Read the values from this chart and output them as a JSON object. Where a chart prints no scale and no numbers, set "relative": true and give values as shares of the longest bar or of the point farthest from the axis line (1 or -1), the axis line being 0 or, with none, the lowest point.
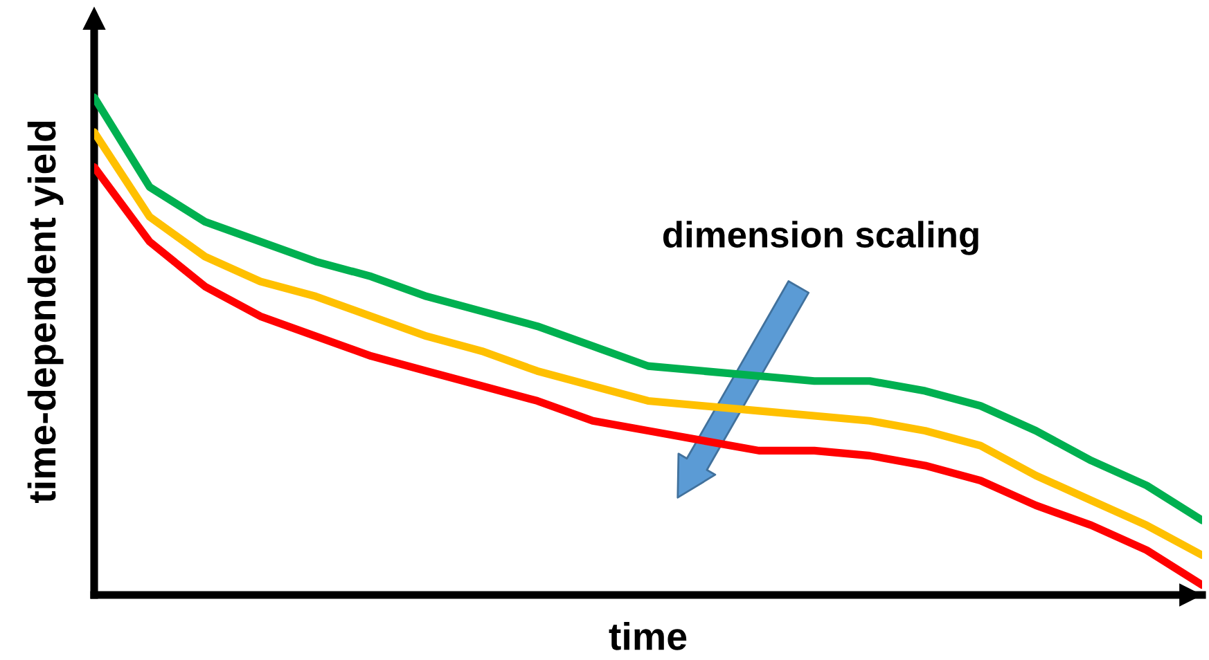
{
  "chart_data": {
    "type": "line",
    "relative": true,
    "xlabel": "time",
    "ylabel": "time-dependent yield",
    "annotations": [
      "dimension scaling"
    ],
    "categories": [
      null,
      null,
      null,
      null,
      null,
      null,
      null,
      null,
      null,
      null,
      null,
      null,
      null,
      null,
      null,
      null,
      null,
      null,
      null,
      null,
      null
    ],
    "series": [
      {
        "color": "#00b050",
        "values": [
          1.0,
          0.82,
          0.75,
          0.71,
          0.67,
          0.64,
          0.6,
          0.57,
          0.54,
          0.5,
          0.46,
          0.45,
          0.44,
          0.43,
          0.43,
          0.41,
          0.38,
          0.33,
          0.27,
          0.22,
          0.15
        ]
      },
      {
        "color": "#ffc000",
        "values": [
          0.93,
          0.76,
          0.68,
          0.63,
          0.6,
          0.56,
          0.52,
          0.49,
          0.45,
          0.42,
          0.39,
          0.38,
          0.37,
          0.36,
          0.35,
          0.33,
          0.3,
          0.24,
          0.19,
          0.14,
          0.08
        ]
      },
      {
        "color": "#ff0000",
        "values": [
          0.86,
          0.71,
          0.62,
          0.56,
          0.52,
          0.48,
          0.45,
          0.42,
          0.39,
          0.35,
          0.33,
          0.31,
          0.29,
          0.29,
          0.28,
          0.26,
          0.23,
          0.18,
          0.14,
          0.09,
          0.02
        ]
      }
    ]
  }
}
